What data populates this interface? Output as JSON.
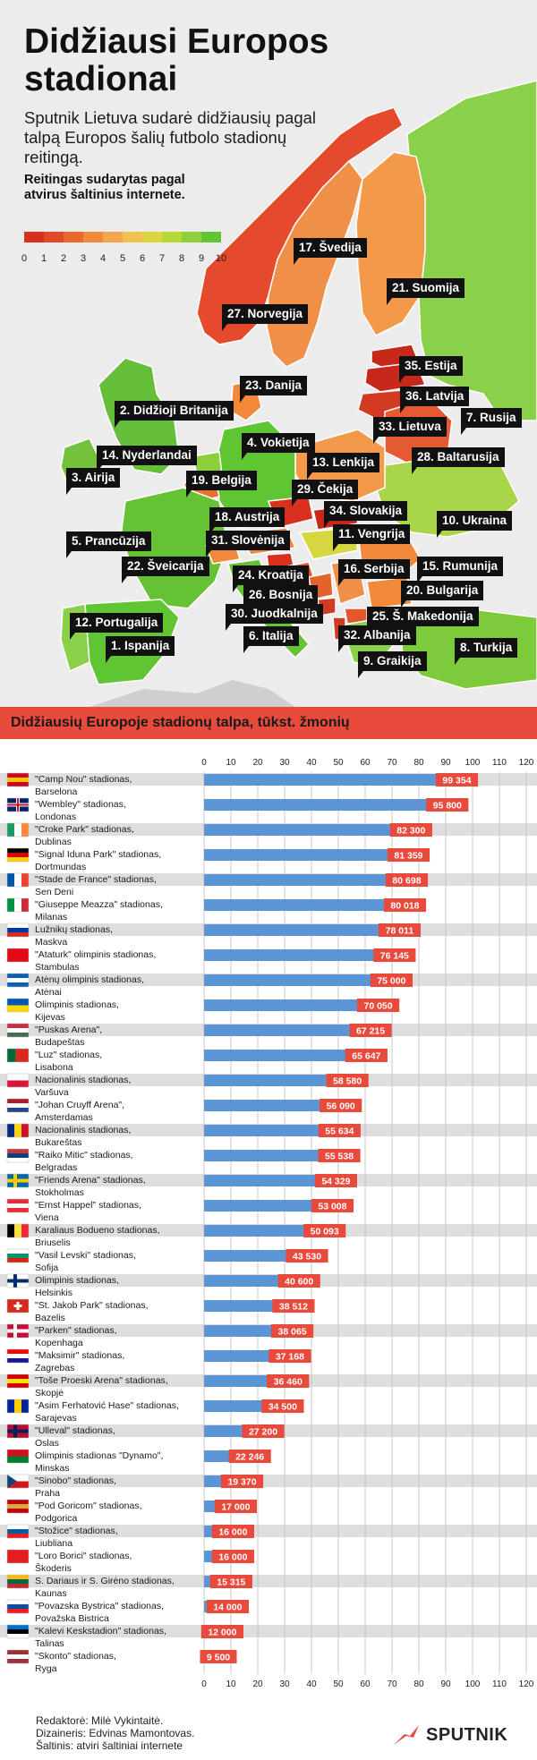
{
  "header": {
    "title_line1": "Didžiausi Europos",
    "title_line2": "stadionai",
    "intro": "Sputnik Lietuva sudarė didžiausių pagal talpą Europos šalių futbolo stadionų reitingą.",
    "source_note": "Reitingas sudarytas pagal atvirus šaltinius internete."
  },
  "rating_scale": {
    "colors": [
      "#d7301f",
      "#e24a27",
      "#ea6a2d",
      "#f08a3a",
      "#f4a64c",
      "#f2c04f",
      "#d9d640",
      "#b6d938",
      "#8fcf3a",
      "#5fc532"
    ],
    "ticks": [
      "0",
      "1",
      "2",
      "3",
      "4",
      "5",
      "6",
      "7",
      "8",
      "9",
      "10"
    ]
  },
  "map": {
    "labels": [
      {
        "name": "map-label-sweden",
        "text": "17. Švedija"
      },
      {
        "name": "map-label-norway",
        "text": "27. Norvegija"
      },
      {
        "name": "map-label-finland",
        "text": "21. Suomija"
      },
      {
        "name": "map-label-denmark",
        "text": "23. Danija"
      },
      {
        "name": "map-label-estonia",
        "text": "35. Estija"
      },
      {
        "name": "map-label-latvia",
        "text": "36. Latvija"
      },
      {
        "name": "map-label-uk",
        "text": "2. Didžioji Britanija"
      },
      {
        "name": "map-label-russia",
        "text": "7. Rusija"
      },
      {
        "name": "map-label-lithuania",
        "text": "33. Lietuva"
      },
      {
        "name": "map-label-germany",
        "text": "4. Vokietija"
      },
      {
        "name": "map-label-netherlands",
        "text": "14. Nyderlandai"
      },
      {
        "name": "map-label-belarus",
        "text": "28. Baltarusija"
      },
      {
        "name": "map-label-poland",
        "text": "13. Lenkija"
      },
      {
        "name": "map-label-ireland",
        "text": "3. Airija"
      },
      {
        "name": "map-label-belgium",
        "text": "19. Belgija"
      },
      {
        "name": "map-label-czechia",
        "text": "29. Čekija"
      },
      {
        "name": "map-label-slovakia",
        "text": "34. Slovakija"
      },
      {
        "name": "map-label-austria",
        "text": "18. Austrija"
      },
      {
        "name": "map-label-ukraine",
        "text": "10. Ukraina"
      },
      {
        "name": "map-label-hungary",
        "text": "11. Vengrija"
      },
      {
        "name": "map-label-france",
        "text": "5. Prancūzija"
      },
      {
        "name": "map-label-slovenia",
        "text": "31. Slovėnija"
      },
      {
        "name": "map-label-switzerland",
        "text": "22. Šveicarija"
      },
      {
        "name": "map-label-serbia",
        "text": "16. Serbija"
      },
      {
        "name": "map-label-romania",
        "text": "15. Rumunija"
      },
      {
        "name": "map-label-croatia",
        "text": "24. Kroatija"
      },
      {
        "name": "map-label-bosnia",
        "text": "26. Bosnija"
      },
      {
        "name": "map-label-bulgaria",
        "text": "20. Bulgarija"
      },
      {
        "name": "map-label-montenegro",
        "text": "30. Juodkalnija"
      },
      {
        "name": "map-label-north-macedonia",
        "text": "25. Š. Makedonija"
      },
      {
        "name": "map-label-portugal",
        "text": "12. Portugalija"
      },
      {
        "name": "map-label-albania",
        "text": "32. Albanija"
      },
      {
        "name": "map-label-italy",
        "text": "6. Italija"
      },
      {
        "name": "map-label-spain",
        "text": "1. Ispanija"
      },
      {
        "name": "map-label-greece",
        "text": "9. Graikija"
      },
      {
        "name": "map-label-turkey",
        "text": "8. Turkija"
      }
    ]
  },
  "chart_banner": "Didžiausių Europoje stadionų talpa, tūkst. žmonių",
  "chart_data": {
    "type": "bar",
    "orientation": "horizontal",
    "xlim": [
      0,
      120
    ],
    "ticks": [
      0,
      10,
      20,
      30,
      40,
      50,
      60,
      70,
      80,
      90,
      100,
      110,
      120
    ],
    "bar_color": "#5b95d6",
    "label_color": "#e84a3c",
    "rows": [
      {
        "stadium": "\"Camp Nou\" stadionas,",
        "city": "Barselona",
        "value": 99354,
        "label": "99 354",
        "flag": "spain-flag"
      },
      {
        "stadium": "\"Wembley\" stadionas,",
        "city": "Londonas",
        "value": 95800,
        "label": "95 800",
        "flag": "uk-flag"
      },
      {
        "stadium": "\"Croke Park\" stadionas,",
        "city": "Dublinas",
        "value": 82300,
        "label": "82 300",
        "flag": "ireland-flag"
      },
      {
        "stadium": "\"Signal Iduna Park\" stadionas,",
        "city": "Dortmundas",
        "value": 81359,
        "label": "81 359",
        "flag": "germany-flag"
      },
      {
        "stadium": "\"Stade de France\" stadionas,",
        "city": "Sen Deni",
        "value": 80698,
        "label": "80 698",
        "flag": "france-flag"
      },
      {
        "stadium": "\"Giuseppe Meazza\" stadionas,",
        "city": "Milanas",
        "value": 80018,
        "label": "80 018",
        "flag": "italy-flag"
      },
      {
        "stadium": "Lužnikų stadionas,",
        "city": "Maskva",
        "value": 78011,
        "label": "78 011",
        "flag": "russia-flag"
      },
      {
        "stadium": "\"Ataturk\" olimpinis stadionas,",
        "city": "Stambulas",
        "value": 76145,
        "label": "76 145",
        "flag": "turkey-flag"
      },
      {
        "stadium": "Atėnų olimpinis stadionas,",
        "city": "Atėnai",
        "value": 75000,
        "label": "75 000",
        "flag": "greece-flag"
      },
      {
        "stadium": "Olimpinis stadionas,",
        "city": "Kijevas",
        "value": 70050,
        "label": "70 050",
        "flag": "ukraine-flag"
      },
      {
        "stadium": "\"Puskas Arena\",",
        "city": "Budapeštas",
        "value": 67215,
        "label": "67 215",
        "flag": "hungary-flag"
      },
      {
        "stadium": "\"Luz\" stadionas,",
        "city": "Lisabona",
        "value": 65647,
        "label": "65 647",
        "flag": "portugal-flag"
      },
      {
        "stadium": "Nacionalinis stadionas,",
        "city": "Varšuva",
        "value": 58580,
        "label": "58 580",
        "flag": "poland-flag"
      },
      {
        "stadium": "\"Johan Cruyff Arena\",",
        "city": "Amsterdamas",
        "value": 56090,
        "label": "56 090",
        "flag": "netherlands-flag"
      },
      {
        "stadium": "Nacionalinis stadionas,",
        "city": "Bukareštas",
        "value": 55634,
        "label": "55 634",
        "flag": "romania-flag"
      },
      {
        "stadium": "\"Raiko Mitic\" stadionas,",
        "city": "Belgradas",
        "value": 55538,
        "label": "55 538",
        "flag": "serbia-flag"
      },
      {
        "stadium": "\"Friends Arena\" stadionas,",
        "city": "Stokholmas",
        "value": 54329,
        "label": "54 329",
        "flag": "sweden-flag"
      },
      {
        "stadium": "\"Ernst Happel\" stadionas,",
        "city": "Viena",
        "value": 53008,
        "label": "53 008",
        "flag": "austria-flag"
      },
      {
        "stadium": "Karaliaus Bodueno stadionas,",
        "city": "Briuselis",
        "value": 50093,
        "label": "50 093",
        "flag": "belgium-flag"
      },
      {
        "stadium": "\"Vasil Levski\" stadionas,",
        "city": "Sofija",
        "value": 43530,
        "label": "43 530",
        "flag": "bulgaria-flag"
      },
      {
        "stadium": "Olimpinis stadionas,",
        "city": "Helsinkis",
        "value": 40600,
        "label": "40 600",
        "flag": "finland-flag"
      },
      {
        "stadium": "\"St. Jakob Park\" stadionas,",
        "city": "Bazelis",
        "value": 38512,
        "label": "38 512",
        "flag": "switzerland-flag"
      },
      {
        "stadium": "\"Parken\" stadionas,",
        "city": "Kopenhaga",
        "value": 38065,
        "label": "38 065",
        "flag": "denmark-flag"
      },
      {
        "stadium": "\"Maksimir\" stadionas,",
        "city": "Zagrebas",
        "value": 37168,
        "label": "37 168",
        "flag": "croatia-flag"
      },
      {
        "stadium": "\"Toše Proeski Arena\" stadionas,",
        "city": "Skopjė",
        "value": 36460,
        "label": "36 460",
        "flag": "north-macedonia-flag"
      },
      {
        "stadium": "\"Asim Ferhatović Hase\" stadionas,",
        "city": "Sarajevas",
        "value": 34500,
        "label": "34 500",
        "flag": "bosnia-flag"
      },
      {
        "stadium": "\"Ulleval\" stadionas,",
        "city": "Oslas",
        "value": 27200,
        "label": "27 200",
        "flag": "norway-flag"
      },
      {
        "stadium": "Olimpinis stadionas \"Dynamo\",",
        "city": "Minskas",
        "value": 22246,
        "label": "22 246",
        "flag": "belarus-flag"
      },
      {
        "stadium": "\"Sinobo\" stadionas,",
        "city": "Praha",
        "value": 19370,
        "label": "19 370",
        "flag": "czechia-flag"
      },
      {
        "stadium": "\"Pod Goricom\" stadionas,",
        "city": "Podgorica",
        "value": 17000,
        "label": "17 000",
        "flag": "montenegro-flag"
      },
      {
        "stadium": "\"Stožice\" stadionas,",
        "city": "Liubliana",
        "value": 16000,
        "label": "16 000",
        "flag": "slovenia-flag"
      },
      {
        "stadium": "\"Loro Borici\" stadionas,",
        "city": "Škoderis",
        "value": 16000,
        "label": "16 000",
        "flag": "albania-flag"
      },
      {
        "stadium": "S. Dariaus ir S. Girėno stadionas,",
        "city": "Kaunas",
        "value": 15315,
        "label": "15 315",
        "flag": "lithuania-flag"
      },
      {
        "stadium": "\"Povazska Bystrica\" stadionas,",
        "city": "Považska Bistrica",
        "value": 14000,
        "label": "14 000",
        "flag": "slovakia-flag"
      },
      {
        "stadium": "\"Kalevi Keskstadion\" stadionas,",
        "city": "Talinas",
        "value": 12000,
        "label": "12 000",
        "flag": "estonia-flag"
      },
      {
        "stadium": "\"Skonto\" stadionas,",
        "city": "Ryga",
        "value": 9500,
        "label": "9 500",
        "flag": "latvia-flag"
      }
    ]
  },
  "footer": {
    "credit_editor": "Redaktorė: Milė Vykintaitė.",
    "credit_designer": "Dizaineris: Edvinas Mamontovas.",
    "credit_sources": "Šaltinis: atviri šaltiniai internete",
    "brand": "SPUTNIK",
    "brand_color": "#e84a3c"
  }
}
